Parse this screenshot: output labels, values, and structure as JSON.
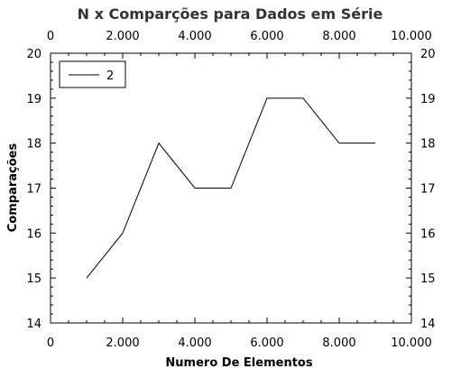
{
  "chart_data": {
    "type": "line",
    "title": "N x Comparções para Dados em Série",
    "xlabel": "Numero De Elementos",
    "ylabel": "Comparações",
    "xlim": [
      0,
      10000
    ],
    "ylim": [
      14,
      20
    ],
    "x_ticks": [
      0,
      2000,
      4000,
      6000,
      8000,
      10000
    ],
    "x_tick_labels": [
      "0",
      "2.000",
      "4.000",
      "6.000",
      "8.000",
      "10.000"
    ],
    "y_ticks": [
      14,
      15,
      16,
      17,
      18,
      19,
      20
    ],
    "y_tick_labels": [
      "14",
      "15",
      "16",
      "17",
      "18",
      "19",
      "20"
    ],
    "grid": false,
    "legend_position": "top-left",
    "series": [
      {
        "name": "2",
        "color": "#000000",
        "x": [
          1000,
          2000,
          3000,
          4000,
          5000,
          6000,
          7000,
          8000,
          9000
        ],
        "y": [
          15,
          16,
          18,
          17,
          17,
          19,
          19,
          18,
          18
        ]
      }
    ]
  }
}
